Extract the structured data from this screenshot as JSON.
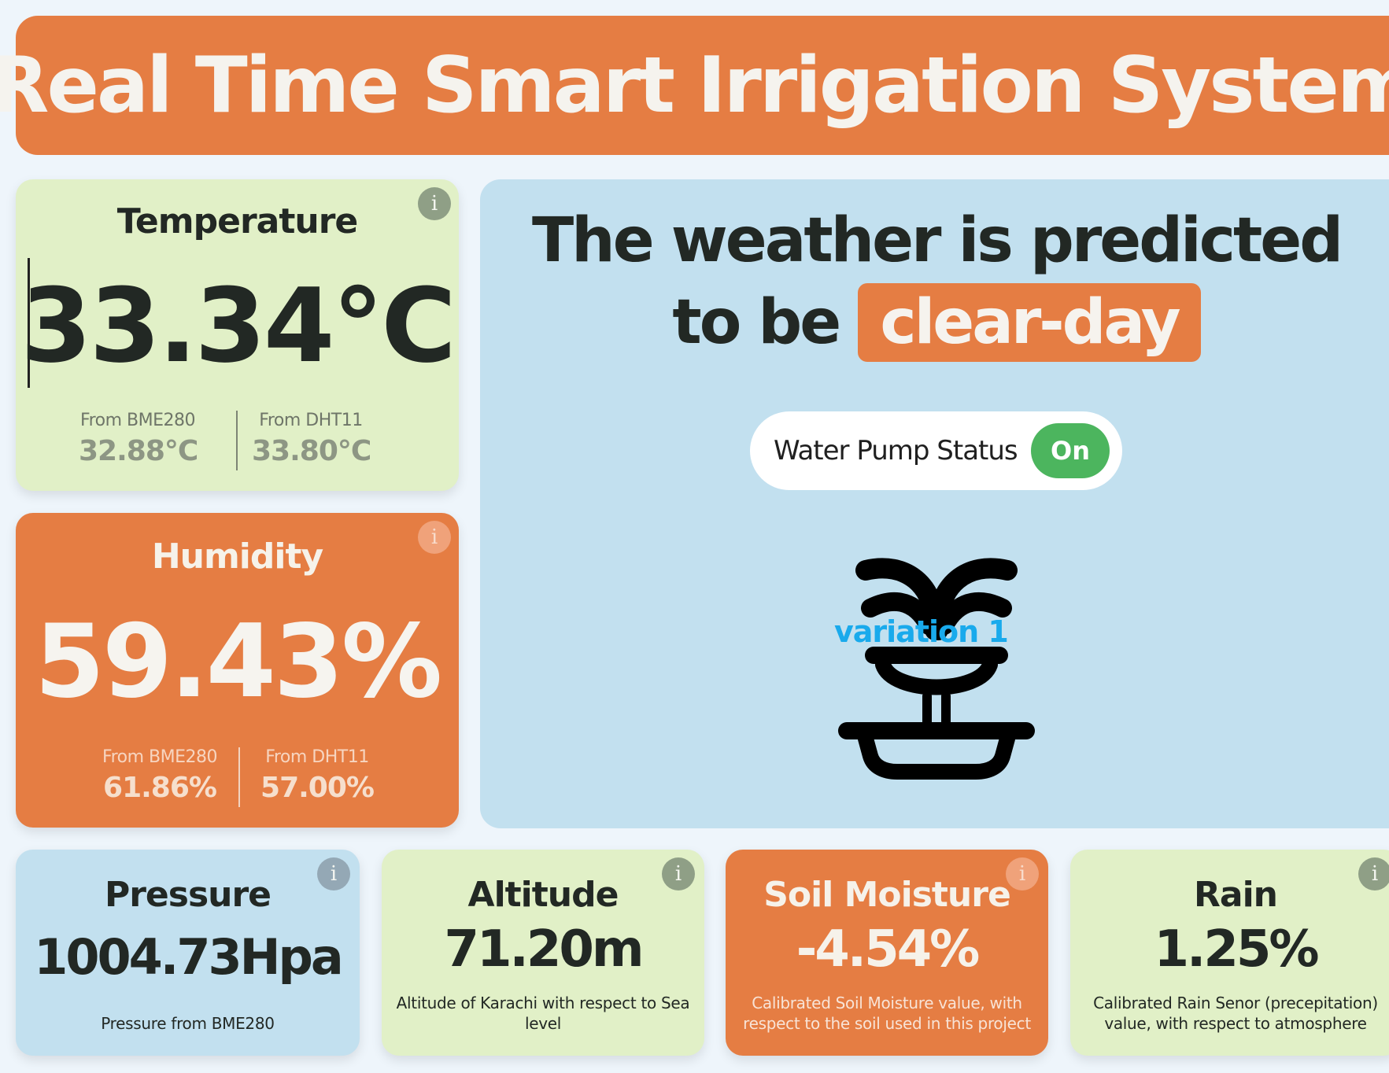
{
  "header": {
    "title": "Real Time Smart Irrigation System"
  },
  "temperature": {
    "title": "Temperature",
    "value": "33.34°C",
    "sources": [
      {
        "label": "From BME280",
        "value": "32.88°C"
      },
      {
        "label": "From DHT11",
        "value": "33.80°C"
      }
    ]
  },
  "humidity": {
    "title": "Humidity",
    "value": "59.43%",
    "sources": [
      {
        "label": "From BME280",
        "value": "61.86%"
      },
      {
        "label": "From DHT11",
        "value": "57.00%"
      }
    ]
  },
  "weather": {
    "line1": "The weather is predicted",
    "line2_prefix": "to be",
    "prediction": "clear-day",
    "pump_label": "Water Pump Status",
    "pump_status": "On",
    "image_alt": "variation 1",
    "icon": "fountain-icon"
  },
  "pressure": {
    "title": "Pressure",
    "value": "1004.73Hpa",
    "desc": "Pressure from BME280"
  },
  "altitude": {
    "title": "Altitude",
    "value": "71.20m",
    "desc": "Altitude of Karachi with respect to Sea level"
  },
  "soil": {
    "title": "Soil Moisture",
    "value": "-4.54%",
    "desc": "Calibrated Soil Moisture value, with respect to the soil used in this project"
  },
  "rain": {
    "title": "Rain",
    "value": "1.25%",
    "desc": "Calibrated Rain Senor (precepitation) value, with respect to atmosphere"
  },
  "info_icon": "i",
  "colors": {
    "orange": "#e57d43",
    "green": "#e1f0c7",
    "blue": "#c2e0ef",
    "pump_on": "#4cb55e",
    "background": "#eef5fb"
  }
}
